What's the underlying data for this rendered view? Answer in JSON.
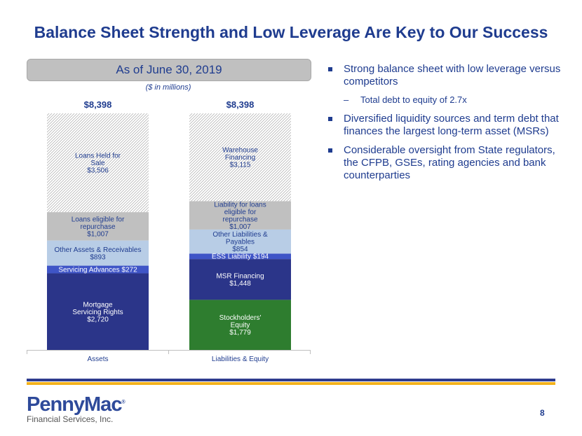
{
  "title": "Balance Sheet Strength and Low Leverage Are Key to Our Success",
  "subtitle": "As of June 30, 2019",
  "units_note": "($ in millions)",
  "chart_data": {
    "type": "bar",
    "stacked": true,
    "categories": [
      "Assets",
      "Liabilities & Equity"
    ],
    "totals": [
      8398,
      8398
    ],
    "total_labels": [
      "$8,398",
      "$8,398"
    ],
    "ylim": [
      0,
      8398
    ],
    "stacks": [
      {
        "segments": [
          {
            "label_lines": [
              "Mortgage",
              "Servicing Rights",
              "$2,720"
            ],
            "value": 2720,
            "color": "#2b3589"
          },
          {
            "label_lines": [
              "Servicing Advances $272"
            ],
            "value": 272,
            "color": "#3f55c7"
          },
          {
            "label_lines": [
              "Other Assets & Receivables",
              "$893"
            ],
            "value": 893,
            "color": "#b8cde6"
          },
          {
            "label_lines": [
              "Loans eligible for",
              "repurchase",
              "$1,007"
            ],
            "value": 1007,
            "color": "#c0c0c0"
          },
          {
            "label_lines": [
              "Loans Held for",
              "Sale",
              "$3,506"
            ],
            "value": 3506,
            "color": "hatch"
          }
        ]
      },
      {
        "segments": [
          {
            "label_lines": [
              "Stockholders'",
              "Equity",
              "$1,779"
            ],
            "value": 1779,
            "color": "#2e7d2f"
          },
          {
            "label_lines": [
              "MSR Financing",
              "$1,448"
            ],
            "value": 1448,
            "color": "#2b3589"
          },
          {
            "label_lines": [
              "ESS Liability $194"
            ],
            "value": 194,
            "color": "#3f55c7"
          },
          {
            "label_lines": [
              "Other Liabilities &",
              "Payables",
              "$854"
            ],
            "value": 854,
            "color": "#b8cde6"
          },
          {
            "label_lines": [
              "Liability for loans",
              "eligible for",
              "repurchase",
              "$1,007"
            ],
            "value": 1007,
            "color": "#c0c0c0"
          },
          {
            "label_lines": [
              "Warehouse",
              "Financing",
              "$3,115"
            ],
            "value": 3115,
            "color": "hatch"
          }
        ]
      }
    ]
  },
  "bullets": [
    {
      "text": "Strong balance sheet with low leverage versus competitors",
      "sub": [
        "Total debt to equity of 2.7x"
      ]
    },
    {
      "text": "Diversified liquidity sources and term debt that finances the largest long-term asset (MSRs)",
      "sub": []
    },
    {
      "text": "Considerable oversight from State regulators, the CFPB, GSEs, rating agencies and bank counterparties",
      "sub": []
    }
  ],
  "logo": {
    "name": "PennyMac",
    "registered": "®",
    "tagline": "Financial Services, Inc."
  },
  "page_number": "8"
}
